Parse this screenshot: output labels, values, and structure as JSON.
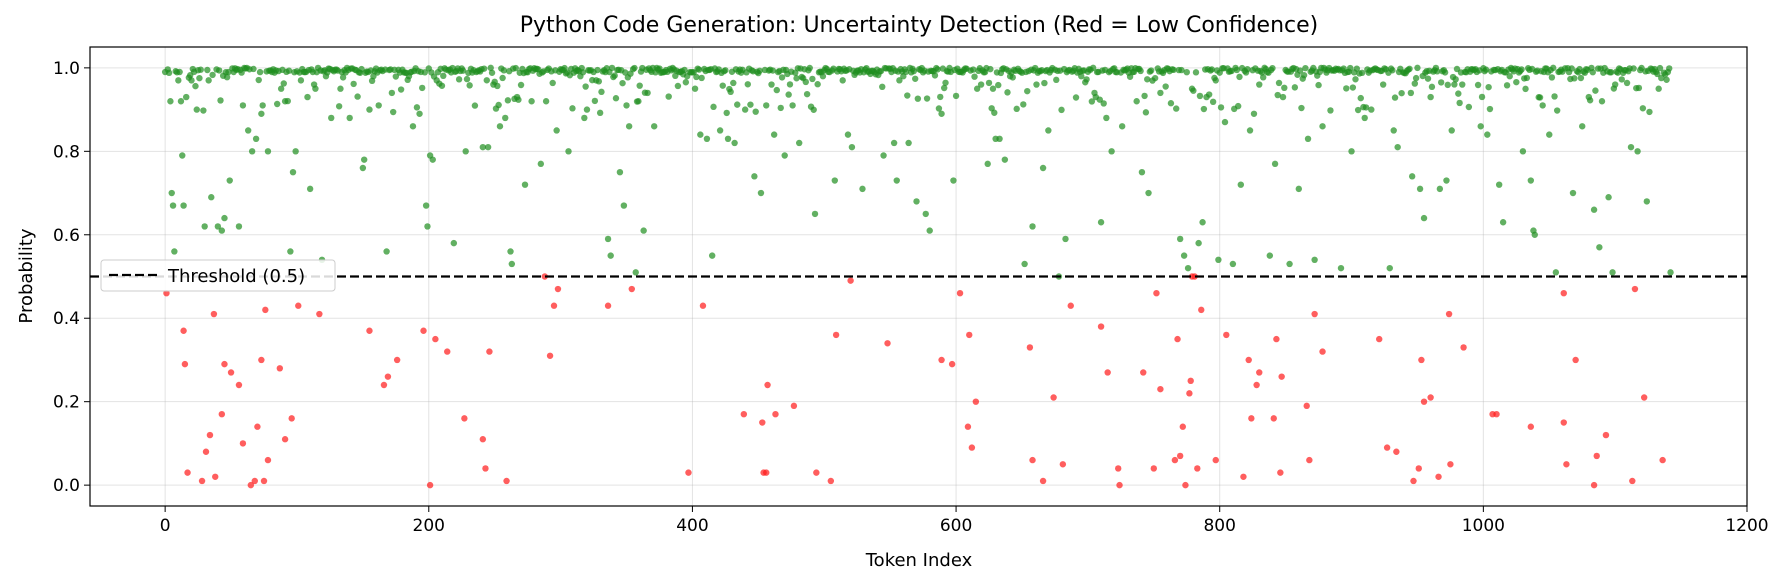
{
  "chart_data": {
    "type": "scatter",
    "title": "Python Code Generation: Uncertainty Detection (Red = Low Confidence)",
    "xlabel": "Token Index",
    "ylabel": "Probability",
    "xlim": [
      -57,
      1200
    ],
    "ylim": [
      -0.05,
      1.05
    ],
    "xticks": [
      0,
      200,
      400,
      600,
      800,
      1000,
      1200
    ],
    "yticks": [
      0.0,
      0.2,
      0.4,
      0.6,
      0.8,
      1.0
    ],
    "xtick_labels": [
      "0",
      "200",
      "400",
      "600",
      "800",
      "1000",
      "1200"
    ],
    "ytick_labels": [
      "0.0",
      "0.2",
      "0.4",
      "0.6",
      "0.8",
      "1.0"
    ],
    "grid": true,
    "legend_position": "center-left",
    "threshold": {
      "value": 0.5,
      "label": "Threshold (0.5)",
      "color": "#000000"
    },
    "colors": {
      "high": "#1f8f1f",
      "low": "#ff1a1a"
    },
    "n_tokens": 1143,
    "low_confidence_points": [
      [
        1,
        0.46
      ],
      [
        14,
        0.37
      ],
      [
        15,
        0.29
      ],
      [
        17,
        0.03
      ],
      [
        28,
        0.01
      ],
      [
        31,
        0.08
      ],
      [
        34,
        0.12
      ],
      [
        37,
        0.41
      ],
      [
        38,
        0.02
      ],
      [
        43,
        0.17
      ],
      [
        45,
        0.29
      ],
      [
        50,
        0.27
      ],
      [
        56,
        0.24
      ],
      [
        59,
        0.1
      ],
      [
        65,
        0.0
      ],
      [
        68,
        0.01
      ],
      [
        70,
        0.14
      ],
      [
        73,
        0.3
      ],
      [
        75,
        0.01
      ],
      [
        76,
        0.42
      ],
      [
        78,
        0.06
      ],
      [
        87,
        0.28
      ],
      [
        91,
        0.11
      ],
      [
        96,
        0.16
      ],
      [
        101,
        0.43
      ],
      [
        117,
        0.41
      ],
      [
        155,
        0.37
      ],
      [
        166,
        0.24
      ],
      [
        169,
        0.26
      ],
      [
        176,
        0.3
      ],
      [
        196,
        0.37
      ],
      [
        201,
        0.0
      ],
      [
        205,
        0.35
      ],
      [
        214,
        0.32
      ],
      [
        227,
        0.16
      ],
      [
        241,
        0.11
      ],
      [
        243,
        0.04
      ],
      [
        246,
        0.32
      ],
      [
        259,
        0.01
      ],
      [
        288,
        0.5
      ],
      [
        292,
        0.31
      ],
      [
        295,
        0.43
      ],
      [
        298,
        0.47
      ],
      [
        336,
        0.43
      ],
      [
        354,
        0.47
      ],
      [
        397,
        0.03
      ],
      [
        408,
        0.43
      ],
      [
        439,
        0.17
      ],
      [
        453,
        0.15
      ],
      [
        454,
        0.03
      ],
      [
        456,
        0.03
      ],
      [
        457,
        0.24
      ],
      [
        463,
        0.17
      ],
      [
        477,
        0.19
      ],
      [
        494,
        0.03
      ],
      [
        505,
        0.01
      ],
      [
        509,
        0.36
      ],
      [
        520,
        0.49
      ],
      [
        548,
        0.34
      ],
      [
        589,
        0.3
      ],
      [
        597,
        0.29
      ],
      [
        603,
        0.46
      ],
      [
        609,
        0.14
      ],
      [
        610,
        0.36
      ],
      [
        612,
        0.09
      ],
      [
        615,
        0.2
      ],
      [
        656,
        0.33
      ],
      [
        658,
        0.06
      ],
      [
        666,
        0.01
      ],
      [
        674,
        0.21
      ],
      [
        681,
        0.05
      ],
      [
        687,
        0.43
      ],
      [
        710,
        0.38
      ],
      [
        715,
        0.27
      ],
      [
        723,
        0.04
      ],
      [
        724,
        0.0
      ],
      [
        742,
        0.27
      ],
      [
        750,
        0.04
      ],
      [
        752,
        0.46
      ],
      [
        755,
        0.23
      ],
      [
        766,
        0.06
      ],
      [
        768,
        0.35
      ],
      [
        770,
        0.07
      ],
      [
        772,
        0.14
      ],
      [
        774,
        0.0
      ],
      [
        777,
        0.22
      ],
      [
        778,
        0.25
      ],
      [
        779,
        0.5
      ],
      [
        781,
        0.5
      ],
      [
        783,
        0.04
      ],
      [
        786,
        0.42
      ],
      [
        797,
        0.06
      ],
      [
        805,
        0.36
      ],
      [
        818,
        0.02
      ],
      [
        822,
        0.3
      ],
      [
        824,
        0.16
      ],
      [
        828,
        0.24
      ],
      [
        830,
        0.27
      ],
      [
        841,
        0.16
      ],
      [
        843,
        0.35
      ],
      [
        846,
        0.03
      ],
      [
        847,
        0.26
      ],
      [
        866,
        0.19
      ],
      [
        868,
        0.06
      ],
      [
        872,
        0.41
      ],
      [
        878,
        0.32
      ],
      [
        921,
        0.35
      ],
      [
        927,
        0.09
      ],
      [
        934,
        0.08
      ],
      [
        947,
        0.01
      ],
      [
        951,
        0.04
      ],
      [
        953,
        0.3
      ],
      [
        955,
        0.2
      ],
      [
        960,
        0.21
      ],
      [
        966,
        0.02
      ],
      [
        974,
        0.41
      ],
      [
        975,
        0.05
      ],
      [
        985,
        0.33
      ],
      [
        1007,
        0.17
      ],
      [
        1010,
        0.17
      ],
      [
        1036,
        0.14
      ],
      [
        1061,
        0.46
      ],
      [
        1061,
        0.15
      ],
      [
        1063,
        0.05
      ],
      [
        1070,
        0.3
      ],
      [
        1084,
        0.0
      ],
      [
        1086,
        0.07
      ],
      [
        1093,
        0.12
      ],
      [
        1113,
        0.01
      ],
      [
        1115,
        0.47
      ],
      [
        1122,
        0.21
      ],
      [
        1136,
        0.06
      ]
    ],
    "high_confidence_points": [
      [
        0,
        0.99
      ],
      [
        4,
        0.92
      ],
      [
        5,
        0.7
      ],
      [
        6,
        0.67
      ],
      [
        7,
        0.56
      ],
      [
        10,
        0.97
      ],
      [
        12,
        0.92
      ],
      [
        13,
        0.79
      ],
      [
        14,
        0.67
      ],
      [
        16,
        0.93
      ],
      [
        20,
        0.97
      ],
      [
        24,
        0.9
      ],
      [
        30,
        0.62
      ],
      [
        33,
        0.97
      ],
      [
        35,
        0.69
      ],
      [
        40,
        0.62
      ],
      [
        43,
        0.61
      ],
      [
        45,
        0.64
      ],
      [
        49,
        0.73
      ],
      [
        52,
        0.99
      ],
      [
        56,
        0.62
      ],
      [
        59,
        0.91
      ],
      [
        63,
        0.85
      ],
      [
        66,
        0.8
      ],
      [
        69,
        0.83
      ],
      [
        73,
        0.89
      ],
      [
        74,
        0.91
      ],
      [
        78,
        0.8
      ],
      [
        81,
        0.99
      ],
      [
        88,
        0.95
      ],
      [
        91,
        0.92
      ],
      [
        95,
        0.56
      ],
      [
        97,
        0.75
      ],
      [
        99,
        0.8
      ],
      [
        103,
        0.97
      ],
      [
        108,
        0.93
      ],
      [
        110,
        0.71
      ],
      [
        113,
        0.96
      ],
      [
        119,
        0.54
      ],
      [
        122,
        0.98
      ],
      [
        126,
        0.88
      ],
      [
        133,
        0.95
      ],
      [
        140,
        0.88
      ],
      [
        150,
        0.76
      ],
      [
        151,
        0.78
      ],
      [
        155,
        0.9
      ],
      [
        158,
        0.98
      ],
      [
        162,
        0.91
      ],
      [
        168,
        0.56
      ],
      [
        172,
        0.94
      ],
      [
        185,
        0.98
      ],
      [
        188,
        0.86
      ],
      [
        193,
        0.89
      ],
      [
        198,
        0.67
      ],
      [
        199,
        0.62
      ],
      [
        201,
        0.79
      ],
      [
        203,
        0.78
      ],
      [
        206,
        0.97
      ],
      [
        219,
        0.58
      ],
      [
        228,
        0.8
      ],
      [
        236,
        0.99
      ],
      [
        241,
        0.81
      ],
      [
        245,
        0.81
      ],
      [
        249,
        0.96
      ],
      [
        254,
        0.86
      ],
      [
        258,
        0.88
      ],
      [
        262,
        0.56
      ],
      [
        263,
        0.53
      ],
      [
        267,
        0.93
      ],
      [
        273,
        0.72
      ],
      [
        278,
        0.92
      ],
      [
        285,
        0.77
      ],
      [
        289,
        0.92
      ],
      [
        297,
        0.85
      ],
      [
        306,
        0.8
      ],
      [
        315,
        0.98
      ],
      [
        318,
        0.88
      ],
      [
        320,
        0.9
      ],
      [
        327,
        0.97
      ],
      [
        336,
        0.59
      ],
      [
        338,
        0.55
      ],
      [
        345,
        0.75
      ],
      [
        348,
        0.67
      ],
      [
        350,
        0.91
      ],
      [
        352,
        0.86
      ],
      [
        357,
        0.51
      ],
      [
        359,
        0.92
      ],
      [
        363,
        0.61
      ],
      [
        366,
        0.94
      ],
      [
        371,
        0.86
      ],
      [
        396,
        0.98
      ],
      [
        406,
        0.84
      ],
      [
        411,
        0.83
      ],
      [
        415,
        0.55
      ],
      [
        421,
        0.85
      ],
      [
        427,
        0.83
      ],
      [
        432,
        0.82
      ],
      [
        440,
        0.9
      ],
      [
        447,
        0.74
      ],
      [
        452,
        0.7
      ],
      [
        456,
        0.91
      ],
      [
        460,
        0.96
      ],
      [
        462,
        0.84
      ],
      [
        470,
        0.79
      ],
      [
        476,
        0.91
      ],
      [
        481,
        0.82
      ],
      [
        493,
        0.65
      ],
      [
        499,
        0.98
      ],
      [
        508,
        0.73
      ],
      [
        514,
        0.97
      ],
      [
        518,
        0.84
      ],
      [
        521,
        0.81
      ],
      [
        529,
        0.71
      ],
      [
        545,
        0.79
      ],
      [
        553,
        0.82
      ],
      [
        555,
        0.73
      ],
      [
        560,
        0.98
      ],
      [
        564,
        0.82
      ],
      [
        570,
        0.68
      ],
      [
        577,
        0.65
      ],
      [
        580,
        0.61
      ],
      [
        589,
        0.89
      ],
      [
        598,
        0.73
      ],
      [
        603,
        0.99
      ],
      [
        616,
        0.95
      ],
      [
        619,
        0.96
      ],
      [
        624,
        0.77
      ],
      [
        628,
        0.95
      ],
      [
        630,
        0.83
      ],
      [
        633,
        0.83
      ],
      [
        637,
        0.78
      ],
      [
        641,
        0.98
      ],
      [
        652,
        0.53
      ],
      [
        658,
        0.62
      ],
      [
        661,
        0.96
      ],
      [
        666,
        0.76
      ],
      [
        670,
        0.85
      ],
      [
        678,
        0.5
      ],
      [
        683,
        0.59
      ],
      [
        695,
        0.98
      ],
      [
        705,
        0.94
      ],
      [
        710,
        0.63
      ],
      [
        714,
        0.88
      ],
      [
        718,
        0.8
      ],
      [
        726,
        0.86
      ],
      [
        737,
        0.92
      ],
      [
        741,
        0.75
      ],
      [
        746,
        0.7
      ],
      [
        755,
        0.94
      ],
      [
        770,
        0.59
      ],
      [
        773,
        0.55
      ],
      [
        776,
        0.52
      ],
      [
        779,
        0.95
      ],
      [
        784,
        0.58
      ],
      [
        787,
        0.63
      ],
      [
        790,
        0.93
      ],
      [
        797,
        0.97
      ],
      [
        799,
        0.54
      ],
      [
        804,
        0.87
      ],
      [
        810,
        0.53
      ],
      [
        816,
        0.72
      ],
      [
        823,
        0.85
      ],
      [
        826,
        0.89
      ],
      [
        830,
        0.96
      ],
      [
        838,
        0.55
      ],
      [
        842,
        0.77
      ],
      [
        848,
        0.93
      ],
      [
        853,
        0.53
      ],
      [
        860,
        0.71
      ],
      [
        867,
        0.83
      ],
      [
        872,
        0.54
      ],
      [
        878,
        0.86
      ],
      [
        892,
        0.52
      ],
      [
        900,
        0.8
      ],
      [
        910,
        0.88
      ],
      [
        915,
        0.9
      ],
      [
        924,
        0.96
      ],
      [
        929,
        0.52
      ],
      [
        932,
        0.85
      ],
      [
        935,
        0.81
      ],
      [
        946,
        0.74
      ],
      [
        952,
        0.71
      ],
      [
        955,
        0.64
      ],
      [
        960,
        0.93
      ],
      [
        967,
        0.71
      ],
      [
        972,
        0.73
      ],
      [
        976,
        0.85
      ],
      [
        984,
        0.96
      ],
      [
        998,
        0.86
      ],
      [
        1003,
        0.84
      ],
      [
        1012,
        0.72
      ],
      [
        1015,
        0.63
      ],
      [
        1020,
        0.98
      ],
      [
        1030,
        0.8
      ],
      [
        1036,
        0.73
      ],
      [
        1038,
        0.61
      ],
      [
        1039,
        0.6
      ],
      [
        1045,
        0.91
      ],
      [
        1050,
        0.84
      ],
      [
        1055,
        0.51
      ],
      [
        1068,
        0.7
      ],
      [
        1075,
        0.86
      ],
      [
        1080,
        0.93
      ],
      [
        1084,
        0.66
      ],
      [
        1088,
        0.57
      ],
      [
        1090,
        0.92
      ],
      [
        1095,
        0.69
      ],
      [
        1098,
        0.51
      ],
      [
        1100,
        0.96
      ],
      [
        1112,
        0.81
      ],
      [
        1117,
        0.8
      ],
      [
        1124,
        0.68
      ],
      [
        1133,
        0.95
      ],
      [
        1142,
        0.51
      ]
    ]
  }
}
